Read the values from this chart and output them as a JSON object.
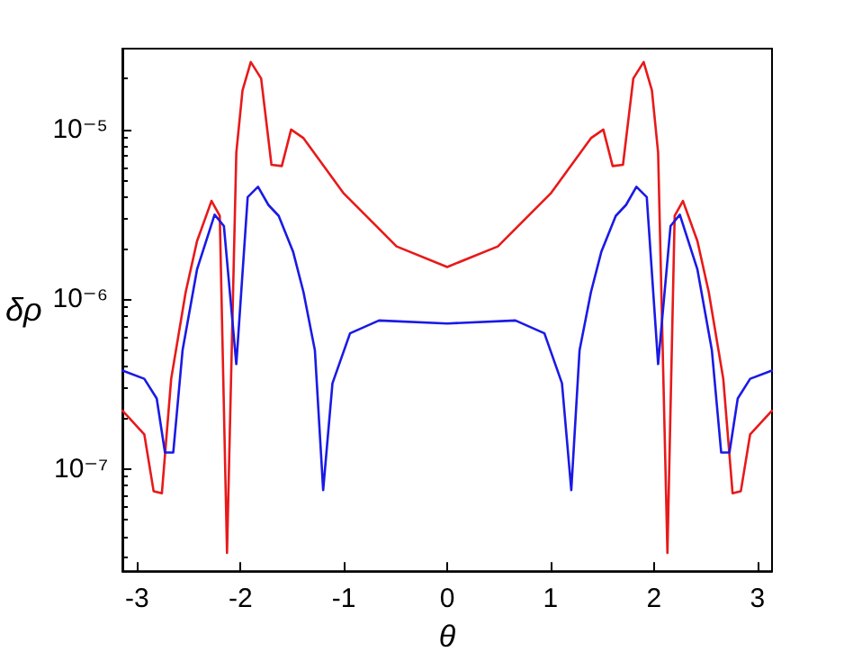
{
  "chart_data": {
    "type": "line",
    "xlabel": "θ",
    "ylabel": "δρ",
    "log": "y",
    "grid": false,
    "marker": "none",
    "line_style": "solid",
    "xlim": [
      -3.1416,
      3.1416
    ],
    "xticks": [
      -3,
      -2,
      -1,
      0,
      1,
      2,
      3
    ],
    "ylim": [
      2.5e-08,
      3e-05
    ],
    "yticks": [
      {
        "value": 1e-07,
        "label": "10⁻⁷"
      },
      {
        "value": 1e-06,
        "label": "10⁻⁶"
      },
      {
        "value": 1e-05,
        "label": "10⁻⁵"
      }
    ],
    "series": [
      {
        "color": "#e8191a",
        "x": [
          -3.14,
          -2.93,
          -2.84,
          -2.76,
          -2.67,
          -2.53,
          -2.42,
          -2.28,
          -2.2,
          -2.13,
          -2.04,
          -1.98,
          -1.9,
          -1.8,
          -1.7,
          -1.6,
          -1.51,
          -1.39,
          -1.0,
          -0.49,
          0,
          0.49,
          1.0,
          1.39,
          1.51,
          1.6,
          1.7,
          1.8,
          1.9,
          1.98,
          2.04,
          2.13,
          2.2,
          2.28,
          2.42,
          2.53,
          2.67,
          2.76,
          2.84,
          2.93,
          3.14
        ],
        "values": [
          2.2e-07,
          1.6e-07,
          7.4e-08,
          7.2e-08,
          3.4e-07,
          1.1e-06,
          2.2e-06,
          3.8e-06,
          3.1e-06,
          3.2e-08,
          7.3e-06,
          1.7e-05,
          2.5e-05,
          2e-05,
          6.2e-06,
          6.1e-06,
          1e-05,
          8.9e-06,
          4.2e-06,
          2.05e-06,
          1.55e-06,
          2.05e-06,
          4.2e-06,
          8.9e-06,
          1e-05,
          6.1e-06,
          6.2e-06,
          2e-05,
          2.5e-05,
          1.7e-05,
          7.3e-06,
          3.2e-08,
          3.1e-06,
          3.8e-06,
          2.2e-06,
          1.1e-06,
          3.4e-07,
          7.2e-08,
          7.4e-08,
          1.6e-07,
          2.2e-07
        ]
      },
      {
        "color": "#1a1ae6",
        "x": [
          -3.14,
          -2.93,
          -2.81,
          -2.73,
          -2.65,
          -2.56,
          -2.42,
          -2.25,
          -2.16,
          -2.04,
          -1.93,
          -1.83,
          -1.73,
          -1.63,
          -1.49,
          -1.39,
          -1.28,
          -1.2,
          -1.11,
          -0.94,
          -0.66,
          0,
          0.66,
          0.94,
          1.11,
          1.2,
          1.28,
          1.39,
          1.49,
          1.63,
          1.73,
          1.83,
          1.93,
          2.04,
          2.16,
          2.25,
          2.42,
          2.56,
          2.65,
          2.73,
          2.81,
          2.93,
          3.14
        ],
        "values": [
          3.8e-07,
          3.4e-07,
          2.6e-07,
          1.25e-07,
          1.25e-07,
          5e-07,
          1.5e-06,
          3.15e-06,
          2.7e-06,
          4.15e-07,
          4e-06,
          4.6e-06,
          3.6e-06,
          3.1e-06,
          1.9e-06,
          1.1e-06,
          5e-07,
          7.5e-08,
          3.2e-07,
          6.3e-07,
          7.5e-07,
          7.2e-07,
          7.5e-07,
          6.3e-07,
          3.2e-07,
          7.5e-08,
          5e-07,
          1.1e-06,
          1.9e-06,
          3.1e-06,
          3.6e-06,
          4.6e-06,
          4e-06,
          4.15e-07,
          2.7e-06,
          3.15e-06,
          1.5e-06,
          5e-07,
          1.25e-07,
          1.25e-07,
          2.6e-07,
          3.4e-07,
          3.8e-07
        ]
      }
    ]
  }
}
